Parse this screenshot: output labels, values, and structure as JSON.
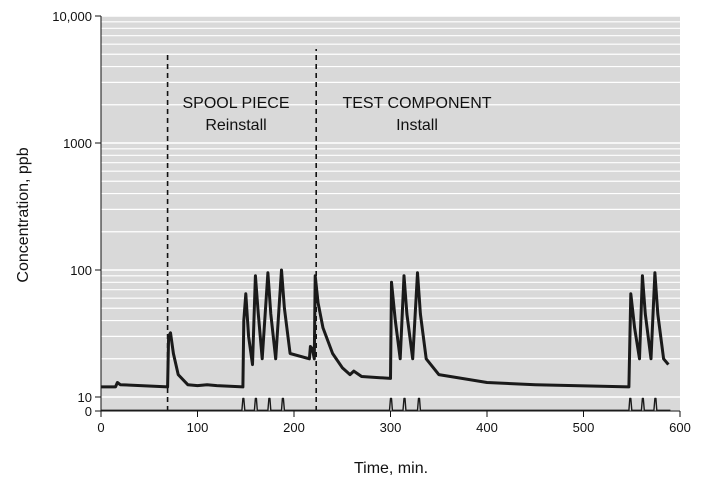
{
  "chart_data": {
    "type": "line",
    "x_label": "Time, min.",
    "y_label": "Concentration, ppb",
    "xlim": [
      0,
      600
    ],
    "xticks": [
      0,
      100,
      200,
      300,
      400,
      500,
      600
    ],
    "ylim": [
      0,
      10000
    ],
    "yscale": "symlog",
    "linthresh": 10,
    "yticks": [
      0,
      10,
      100,
      1000,
      {
        "value": 10000,
        "label": "10,000"
      }
    ],
    "grid": true,
    "minor_grid": true,
    "annotations": [
      "SPOOL PIECE",
      "Reinstall",
      "TEST COMPONENT",
      "Install"
    ],
    "vlines": [
      {
        "x": 69,
        "top": 5000
      },
      {
        "x": 223,
        "top": 5500
      }
    ],
    "series": [
      {
        "color": "#1a1a1a",
        "x": [
          0,
          15,
          17,
          20,
          69,
          70,
          72,
          75,
          80,
          90,
          100,
          110,
          120,
          147,
          148,
          150,
          153,
          157,
          160,
          163,
          167,
          173,
          176,
          181,
          187,
          190,
          196,
          216,
          217,
          219,
          221,
          222,
          225,
          230,
          240,
          250,
          258,
          262,
          270,
          300,
          301,
          305,
          310,
          314,
          317,
          323,
          328,
          331,
          337,
          350,
          400,
          450,
          547,
          549,
          553,
          558,
          561,
          564,
          570,
          574,
          577,
          583,
          588
        ],
        "values": [
          12,
          12,
          13,
          12.5,
          12,
          30,
          32,
          22,
          15,
          12.5,
          12.3,
          12.5,
          12.3,
          12,
          40,
          65,
          30,
          18,
          90,
          45,
          20,
          95,
          45,
          20,
          100,
          50,
          22,
          20,
          25,
          24,
          20,
          90,
          55,
          35,
          22,
          17,
          15,
          16,
          14.5,
          14,
          80,
          40,
          20,
          90,
          45,
          20,
          95,
          45,
          20,
          15,
          13,
          12.5,
          12,
          65,
          35,
          20,
          90,
          45,
          20,
          95,
          45,
          20,
          18
        ]
      },
      {
        "color": "#1a1a1a",
        "x": [
          0,
          146,
          147,
          148,
          149,
          159,
          160,
          161,
          162,
          173,
          174,
          175,
          176,
          187,
          188,
          189,
          190,
          299,
          300,
          301,
          302,
          313,
          314,
          315,
          316,
          328,
          329,
          330,
          331,
          547,
          548,
          549,
          550,
          560,
          561,
          562,
          563,
          573,
          574,
          575,
          576,
          590
        ],
        "values": [
          0.5,
          0.5,
          9,
          9,
          0.5,
          0.5,
          9,
          9,
          0.5,
          0.5,
          9,
          9,
          0.5,
          0.5,
          9,
          9,
          0.5,
          0.5,
          9,
          9,
          0.5,
          0.5,
          9,
          9,
          0.5,
          0.5,
          9,
          9,
          0.5,
          0.5,
          9,
          9,
          0.5,
          0.5,
          9,
          9,
          0.5,
          0.5,
          9,
          9,
          0.5,
          0.5
        ]
      }
    ]
  }
}
